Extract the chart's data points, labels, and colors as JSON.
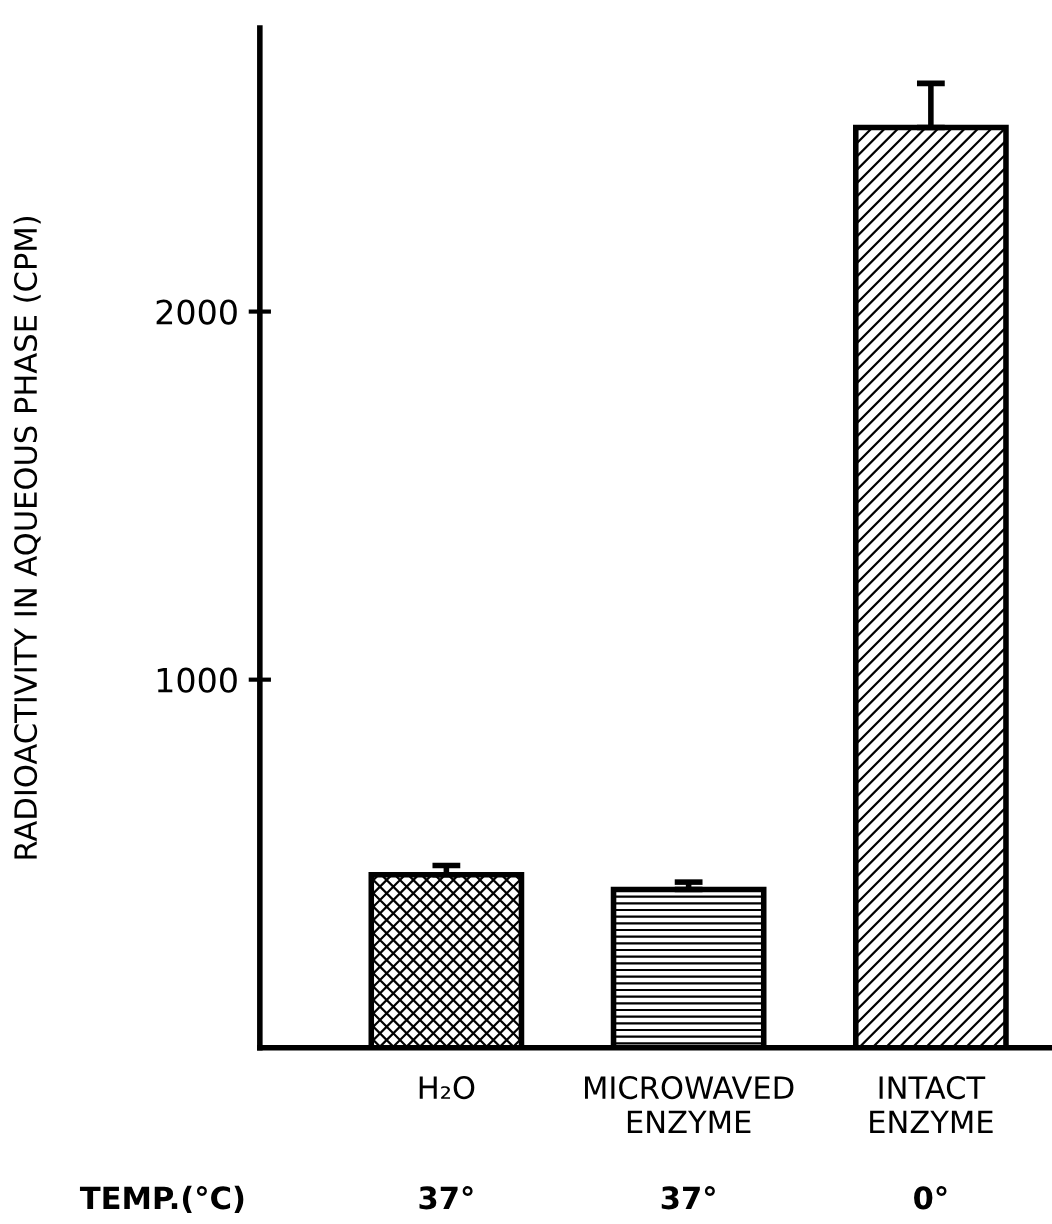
{
  "chart_data": {
    "type": "bar",
    "ylabel": "RADIOACTIVITY IN AQUEOUS PHASE (CPM)",
    "categories": [
      "H₂O",
      "MICROWAVED\nENZYME",
      "INTACT\nENZYME"
    ],
    "values": [
      470,
      430,
      2500
    ],
    "errors": [
      [
        470,
        495
      ],
      [
        430,
        450
      ],
      [
        2500,
        2620
      ]
    ],
    "colors": [
      "#000000",
      "#000000",
      "#000000"
    ],
    "ylim": [
      0,
      2770
    ],
    "yticks": [
      1000,
      2000
    ],
    "grid": false,
    "legend": false,
    "annotations": [
      "TEMP.(°C)",
      "37°",
      "37°",
      "0°"
    ]
  }
}
